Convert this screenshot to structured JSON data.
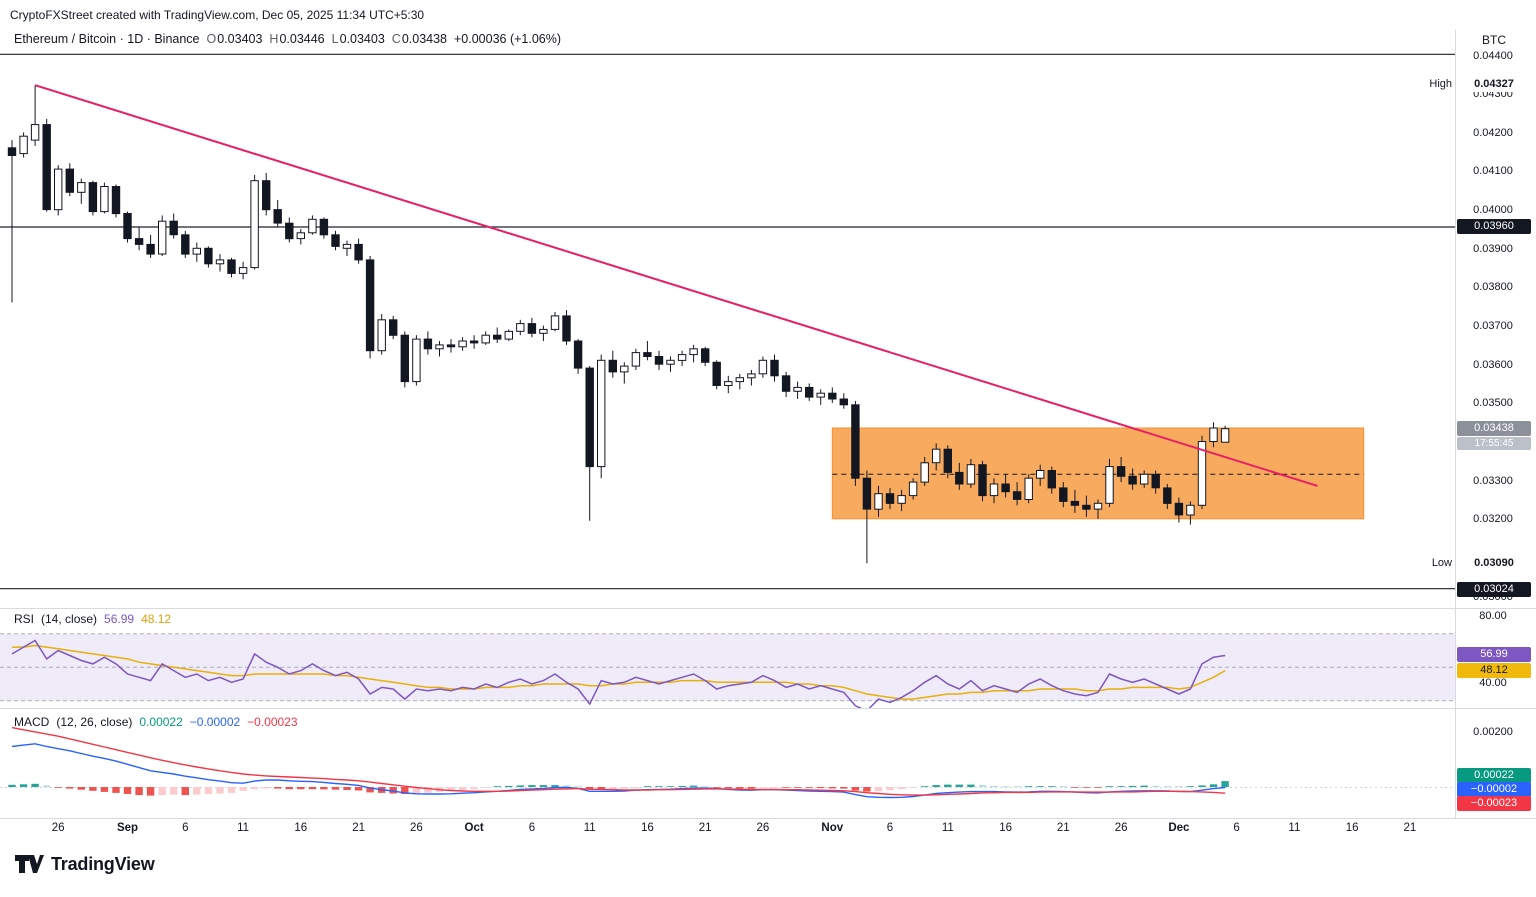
{
  "header": {
    "credit": "CryptoFXStreet created with TradingView.com, Dec 05, 2025 11:34 UTC+5:30",
    "quote_currency": "BTC"
  },
  "legend": {
    "title": "Ethereum / Bitcoin · 1D · Binance",
    "o_label": "O",
    "o": "0.03403",
    "h_label": "H",
    "h": "0.03446",
    "l_label": "L",
    "l": "0.03403",
    "c_label": "C",
    "c": "0.03438",
    "change": "+0.00036 (+1.06%)"
  },
  "footer": {
    "logo_text": "TradingView"
  },
  "colors": {
    "candle_up": "#ffffff",
    "candle_down": "#131722",
    "candle_outline": "#131722",
    "trendline": "#e91e63",
    "box_fill": "#f8ab5e",
    "box_stroke": "#f29235",
    "box_midline": "#131722",
    "rsi_line": "#7e57c2",
    "rsi_ma": "#e8b00a",
    "rsi_band": "rgba(126,87,194,0.12)",
    "macd_line": "#2962ff",
    "signal_line": "#f23645",
    "hist_up": "#26a69a",
    "hist_up_light": "#b2dfdb",
    "hist_down": "#ef5350",
    "hist_down_light": "#fccbcd",
    "badge_dark": "#131722",
    "badge_last": "#8b909b",
    "badge_rsi": "#7e57c2",
    "badge_rsi_ma": "#f0b90b",
    "badge_hist": "#089981",
    "badge_macd": "#2962ff",
    "badge_signal": "#f23645"
  },
  "chart_data": {
    "type": "candlestick",
    "title": "Ethereum / Bitcoin · 1D · Binance",
    "price_unit": 1e-05,
    "price_range": {
      "top": 0.0441,
      "bottom": 0.0297
    },
    "high": {
      "tag": "High",
      "label": "0.04327",
      "value": 0.04327
    },
    "low": {
      "tag": "Low",
      "label": "0.03090",
      "value": 0.0309
    },
    "last_price": {
      "label": "0.03438",
      "countdown": "17:55:45",
      "value": 0.03438
    },
    "price_lines": [
      {
        "price": 0.04407,
        "label": ""
      },
      {
        "price": 0.0396,
        "label": "0.03960"
      },
      {
        "price": 0.03024,
        "label": "0.03024"
      }
    ],
    "trendline": {
      "start_index": 2,
      "start_price": 0.04327,
      "end_index": 113,
      "end_price": 0.0329
    },
    "range_box": {
      "start_index": 71,
      "end_index": 117,
      "top": 0.0344,
      "bottom": 0.03205,
      "mid": 0.0332
    },
    "price_axis": [
      {
        "p": 0.044,
        "t": "0.04400"
      },
      {
        "p": 0.043,
        "t": "0.04300"
      },
      {
        "p": 0.042,
        "t": "0.04200"
      },
      {
        "p": 0.041,
        "t": "0.04100"
      },
      {
        "p": 0.04,
        "t": "0.04000"
      },
      {
        "p": 0.039,
        "t": "0.03900"
      },
      {
        "p": 0.038,
        "t": "0.03800"
      },
      {
        "p": 0.037,
        "t": "0.03700"
      },
      {
        "p": 0.036,
        "t": "0.03600"
      },
      {
        "p": 0.035,
        "t": "0.03500"
      },
      {
        "p": 0.033,
        "t": "0.03300"
      },
      {
        "p": 0.032,
        "t": "0.03200"
      },
      {
        "p": 0.03,
        "t": "0.03000"
      }
    ],
    "time_axis": [
      {
        "t": "26",
        "i": 4
      },
      {
        "t": "Sep",
        "i": 10,
        "b": 1
      },
      {
        "t": "6",
        "i": 15
      },
      {
        "t": "11",
        "i": 20
      },
      {
        "t": "16",
        "i": 25
      },
      {
        "t": "21",
        "i": 30
      },
      {
        "t": "26",
        "i": 35
      },
      {
        "t": "Oct",
        "i": 40,
        "b": 1
      },
      {
        "t": "6",
        "i": 45
      },
      {
        "t": "11",
        "i": 50
      },
      {
        "t": "16",
        "i": 55
      },
      {
        "t": "21",
        "i": 60
      },
      {
        "t": "26",
        "i": 65
      },
      {
        "t": "Nov",
        "i": 71,
        "b": 1
      },
      {
        "t": "6",
        "i": 76
      },
      {
        "t": "11",
        "i": 81
      },
      {
        "t": "16",
        "i": 86
      },
      {
        "t": "21",
        "i": 91
      },
      {
        "t": "26",
        "i": 96
      },
      {
        "t": "Dec",
        "i": 101,
        "b": 1
      },
      {
        "t": "6",
        "i": 106
      },
      {
        "t": "11",
        "i": 111
      },
      {
        "t": "16",
        "i": 116
      },
      {
        "t": "21",
        "i": 121
      }
    ],
    "candles": [
      [
        4165,
        4185,
        3765,
        4145
      ],
      [
        4150,
        4205,
        4140,
        4195
      ],
      [
        4185,
        4327,
        4170,
        4225
      ],
      [
        4225,
        4240,
        4000,
        4005
      ],
      [
        4005,
        4120,
        3990,
        4110
      ],
      [
        4110,
        4125,
        4040,
        4050
      ],
      [
        4050,
        4085,
        4020,
        4075
      ],
      [
        4075,
        4080,
        3990,
        4000
      ],
      [
        4000,
        4075,
        3995,
        4065
      ],
      [
        4065,
        4070,
        3985,
        3995
      ],
      [
        3995,
        4000,
        3920,
        3930
      ],
      [
        3930,
        3960,
        3900,
        3915
      ],
      [
        3915,
        3940,
        3880,
        3890
      ],
      [
        3890,
        3990,
        3885,
        3975
      ],
      [
        3975,
        3995,
        3930,
        3940
      ],
      [
        3940,
        3950,
        3880,
        3890
      ],
      [
        3890,
        3920,
        3870,
        3905
      ],
      [
        3905,
        3910,
        3855,
        3865
      ],
      [
        3865,
        3890,
        3845,
        3875
      ],
      [
        3875,
        3880,
        3830,
        3840
      ],
      [
        3840,
        3870,
        3825,
        3855
      ],
      [
        3855,
        4095,
        3850,
        4080
      ],
      [
        4080,
        4100,
        3990,
        4005
      ],
      [
        4005,
        4030,
        3960,
        3970
      ],
      [
        3970,
        3985,
        3920,
        3930
      ],
      [
        3930,
        3955,
        3915,
        3945
      ],
      [
        3945,
        3990,
        3940,
        3980
      ],
      [
        3980,
        3985,
        3930,
        3940
      ],
      [
        3940,
        3950,
        3900,
        3910
      ],
      [
        3905,
        3925,
        3885,
        3915
      ],
      [
        3915,
        3930,
        3865,
        3875
      ],
      [
        3875,
        3885,
        3620,
        3640
      ],
      [
        3640,
        3735,
        3630,
        3720
      ],
      [
        3720,
        3730,
        3670,
        3680
      ],
      [
        3680,
        3690,
        3545,
        3560
      ],
      [
        3560,
        3680,
        3550,
        3670
      ],
      [
        3670,
        3690,
        3630,
        3645
      ],
      [
        3645,
        3665,
        3625,
        3655
      ],
      [
        3655,
        3670,
        3635,
        3650
      ],
      [
        3650,
        3675,
        3640,
        3665
      ],
      [
        3665,
        3680,
        3645,
        3660
      ],
      [
        3660,
        3690,
        3655,
        3680
      ],
      [
        3680,
        3700,
        3660,
        3670
      ],
      [
        3670,
        3695,
        3665,
        3690
      ],
      [
        3690,
        3720,
        3680,
        3710
      ],
      [
        3710,
        3725,
        3675,
        3685
      ],
      [
        3685,
        3705,
        3665,
        3695
      ],
      [
        3695,
        3740,
        3690,
        3730
      ],
      [
        3730,
        3745,
        3655,
        3665
      ],
      [
        3665,
        3670,
        3580,
        3595
      ],
      [
        3595,
        3600,
        3200,
        3340
      ],
      [
        3340,
        3630,
        3310,
        3615
      ],
      [
        3615,
        3640,
        3570,
        3585
      ],
      [
        3585,
        3610,
        3555,
        3600
      ],
      [
        3600,
        3645,
        3590,
        3635
      ],
      [
        3635,
        3665,
        3615,
        3625
      ],
      [
        3625,
        3640,
        3590,
        3605
      ],
      [
        3605,
        3625,
        3585,
        3615
      ],
      [
        3615,
        3640,
        3600,
        3630
      ],
      [
        3630,
        3655,
        3610,
        3645
      ],
      [
        3645,
        3650,
        3600,
        3610
      ],
      [
        3610,
        3615,
        3540,
        3550
      ],
      [
        3550,
        3575,
        3530,
        3560
      ],
      [
        3560,
        3580,
        3540,
        3570
      ],
      [
        3570,
        3590,
        3550,
        3580
      ],
      [
        3580,
        3625,
        3570,
        3615
      ],
      [
        3615,
        3630,
        3560,
        3575
      ],
      [
        3575,
        3585,
        3520,
        3535
      ],
      [
        3535,
        3560,
        3515,
        3545
      ],
      [
        3545,
        3555,
        3510,
        3520
      ],
      [
        3520,
        3540,
        3500,
        3530
      ],
      [
        3530,
        3545,
        3505,
        3515
      ],
      [
        3515,
        3530,
        3490,
        3500
      ],
      [
        3500,
        3510,
        3290,
        3310
      ],
      [
        3310,
        3330,
        3090,
        3230
      ],
      [
        3230,
        3290,
        3210,
        3270
      ],
      [
        3270,
        3285,
        3230,
        3245
      ],
      [
        3245,
        3280,
        3225,
        3265
      ],
      [
        3265,
        3310,
        3255,
        3300
      ],
      [
        3300,
        3365,
        3290,
        3350
      ],
      [
        3350,
        3400,
        3330,
        3385
      ],
      [
        3385,
        3395,
        3310,
        3325
      ],
      [
        3325,
        3350,
        3280,
        3295
      ],
      [
        3295,
        3360,
        3285,
        3345
      ],
      [
        3345,
        3355,
        3250,
        3265
      ],
      [
        3265,
        3310,
        3245,
        3295
      ],
      [
        3295,
        3320,
        3260,
        3275
      ],
      [
        3275,
        3300,
        3240,
        3255
      ],
      [
        3255,
        3320,
        3245,
        3310
      ],
      [
        3310,
        3345,
        3290,
        3330
      ],
      [
        3330,
        3340,
        3270,
        3285
      ],
      [
        3285,
        3300,
        3235,
        3250
      ],
      [
        3250,
        3280,
        3220,
        3240
      ],
      [
        3240,
        3265,
        3210,
        3230
      ],
      [
        3230,
        3255,
        3205,
        3245
      ],
      [
        3245,
        3360,
        3235,
        3340
      ],
      [
        3340,
        3365,
        3300,
        3315
      ],
      [
        3315,
        3335,
        3280,
        3295
      ],
      [
        3295,
        3330,
        3285,
        3320
      ],
      [
        3320,
        3330,
        3270,
        3285
      ],
      [
        3285,
        3295,
        3230,
        3245
      ],
      [
        3245,
        3260,
        3195,
        3215
      ],
      [
        3215,
        3250,
        3190,
        3240
      ],
      [
        3240,
        3420,
        3230,
        3405
      ],
      [
        3405,
        3455,
        3390,
        3440
      ],
      [
        3403,
        3446,
        3403,
        3438
      ]
    ],
    "rsi": {
      "title": "RSI",
      "params": "(14, close)",
      "value": "56.99",
      "ma_value": "48.12",
      "upper": 70,
      "middle": 50,
      "lower": 30,
      "scale_labels": [
        {
          "v": 80,
          "t": "80.00"
        },
        {
          "v": 40,
          "t": "40.00"
        }
      ],
      "values": [
        58,
        62,
        66,
        55,
        60,
        57,
        54,
        52,
        56,
        52,
        46,
        44,
        42,
        52,
        48,
        44,
        46,
        42,
        44,
        41,
        43,
        58,
        53,
        50,
        46,
        48,
        52,
        48,
        45,
        47,
        43,
        34,
        38,
        37,
        31,
        37,
        36,
        37,
        36,
        38,
        37,
        40,
        38,
        41,
        43,
        40,
        42,
        46,
        41,
        37,
        28,
        42,
        40,
        41,
        44,
        42,
        40,
        42,
        44,
        46,
        42,
        37,
        39,
        40,
        41,
        45,
        42,
        38,
        40,
        37,
        39,
        37,
        35,
        27,
        24,
        31,
        29,
        32,
        36,
        41,
        45,
        40,
        37,
        42,
        36,
        39,
        37,
        35,
        40,
        43,
        39,
        36,
        34,
        33,
        35,
        46,
        43,
        41,
        43,
        40,
        37,
        34,
        37,
        52,
        56,
        57
      ],
      "ma": [
        62,
        62,
        63,
        62,
        61,
        60,
        59,
        58,
        57,
        56,
        55,
        53,
        52,
        51,
        50,
        49,
        48,
        47,
        46,
        45,
        45,
        46,
        46,
        46,
        46,
        46,
        46,
        46,
        45,
        45,
        44,
        43,
        42,
        41,
        40,
        39,
        38,
        38,
        37,
        37,
        37,
        38,
        38,
        38,
        39,
        39,
        40,
        40,
        40,
        40,
        39,
        39,
        40,
        40,
        41,
        41,
        41,
        41,
        42,
        42,
        42,
        41,
        41,
        41,
        41,
        41,
        41,
        41,
        40,
        40,
        39,
        39,
        38,
        36,
        34,
        33,
        32,
        31,
        31,
        32,
        33,
        34,
        34,
        35,
        35,
        36,
        36,
        36,
        36,
        37,
        37,
        37,
        37,
        36,
        36,
        37,
        37,
        38,
        38,
        38,
        38,
        37,
        38,
        41,
        44,
        48
      ]
    },
    "macd": {
      "title": "MACD",
      "params": "(12, 26, close)",
      "hist_label": "0.00022",
      "macd_label": "−0.00002",
      "signal_label": "−0.00023",
      "scale_labels": [
        {
          "v": 0.002,
          "t": "0.00200"
        }
      ],
      "macd": [
        150,
        155,
        160,
        150,
        142,
        134,
        124,
        114,
        106,
        96,
        84,
        72,
        60,
        54,
        48,
        40,
        34,
        27,
        22,
        16,
        14,
        22,
        26,
        26,
        23,
        21,
        20,
        17,
        13,
        10,
        6,
        -4,
        -10,
        -15,
        -22,
        -25,
        -26,
        -26,
        -25,
        -23,
        -21,
        -18,
        -16,
        -13,
        -9,
        -7,
        -5,
        -2,
        -2,
        -5,
        -16,
        -16,
        -16,
        -15,
        -12,
        -10,
        -9,
        -8,
        -6,
        -4,
        -4,
        -6,
        -9,
        -11,
        -12,
        -10,
        -10,
        -11,
        -13,
        -15,
        -16,
        -17,
        -19,
        -28,
        -36,
        -38,
        -39,
        -38,
        -35,
        -30,
        -24,
        -21,
        -19,
        -17,
        -17,
        -17,
        -18,
        -19,
        -18,
        -16,
        -16,
        -17,
        -19,
        -21,
        -22,
        -18,
        -16,
        -15,
        -14,
        -14,
        -15,
        -17,
        -17,
        -12,
        -6,
        -2
      ],
      "signal": [
        220,
        212,
        204,
        196,
        188,
        178,
        168,
        158,
        148,
        138,
        128,
        118,
        108,
        99,
        90,
        82,
        74,
        67,
        60,
        54,
        48,
        44,
        41,
        39,
        37,
        35,
        33,
        31,
        28,
        26,
        23,
        18,
        13,
        8,
        3,
        -2,
        -6,
        -10,
        -13,
        -15,
        -16,
        -16,
        -16,
        -15,
        -13,
        -11,
        -10,
        -8,
        -7,
        -6,
        -8,
        -9,
        -10,
        -11,
        -11,
        -11,
        -10,
        -10,
        -9,
        -8,
        -7,
        -7,
        -7,
        -8,
        -9,
        -9,
        -9,
        -10,
        -10,
        -11,
        -12,
        -13,
        -14,
        -17,
        -21,
        -24,
        -27,
        -29,
        -30,
        -30,
        -29,
        -27,
        -26,
        -24,
        -22,
        -21,
        -20,
        -20,
        -20,
        -19,
        -18,
        -18,
        -18,
        -19,
        -19,
        -19,
        -18,
        -18,
        -17,
        -16,
        -16,
        -16,
        -17,
        -18,
        -20,
        -23
      ],
      "hist": [
        8,
        10,
        12,
        6,
        -2,
        -6,
        -10,
        -14,
        -18,
        -22,
        -26,
        -30,
        -32,
        -30,
        -28,
        -30,
        -28,
        -26,
        -24,
        -22,
        -14,
        -8,
        -6,
        -6,
        -8,
        -8,
        -8,
        -9,
        -10,
        -11,
        -13,
        -20,
        -22,
        -24,
        -26,
        -25,
        -21,
        -18,
        -15,
        -11,
        -7,
        -3,
        1,
        4,
        6,
        7,
        7,
        7,
        6,
        1,
        -9,
        -10,
        -8,
        -5,
        -1,
        1,
        2,
        3,
        4,
        5,
        2,
        -1,
        -4,
        -5,
        -6,
        -3,
        -1,
        -1,
        -2,
        -3,
        -4,
        -5,
        -6,
        -13,
        -17,
        -15,
        -12,
        -8,
        -3,
        3,
        7,
        9,
        9,
        9,
        7,
        4,
        3,
        1,
        2,
        3,
        3,
        1,
        -1,
        -2,
        -3,
        1,
        3,
        4,
        5,
        4,
        2,
        0,
        0,
        6,
        10,
        22
      ]
    }
  }
}
